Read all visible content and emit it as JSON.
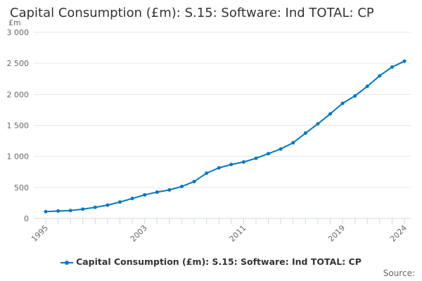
{
  "title": "Capital Consumption (£m): S.15: Software: Ind TOTAL: CP",
  "source_label": "Source:",
  "chart_data": {
    "type": "line",
    "title": "Capital Consumption (£m): S.15: Software: Ind TOTAL: CP",
    "ylabel": "£m",
    "ylim": [
      0,
      3000
    ],
    "yticks": [
      0,
      500,
      1000,
      1500,
      2000,
      2500,
      3000
    ],
    "ytick_labels": [
      "0",
      "500",
      "1 000",
      "1 500",
      "2 000",
      "2 500",
      "3 000"
    ],
    "xtick_labels": [
      "1995",
      "2003",
      "2011",
      "2019",
      "2024"
    ],
    "grid": true,
    "legend": "bottom",
    "color": "#0277bd",
    "x": [
      1995,
      1996,
      1997,
      1998,
      1999,
      2000,
      2001,
      2002,
      2003,
      2004,
      2005,
      2006,
      2007,
      2008,
      2009,
      2010,
      2011,
      2012,
      2013,
      2014,
      2015,
      2016,
      2017,
      2018,
      2019,
      2020,
      2021,
      2022,
      2023,
      2024
    ],
    "series": [
      {
        "name": "Capital Consumption (£m): S.15: Software: Ind TOTAL: CP",
        "values": [
          110,
          120,
          128,
          150,
          180,
          215,
          265,
          322,
          380,
          425,
          460,
          515,
          595,
          730,
          815,
          870,
          910,
          970,
          1045,
          1120,
          1220,
          1375,
          1525,
          1685,
          1855,
          1975,
          2130,
          2300,
          2440,
          2535
        ]
      }
    ]
  }
}
